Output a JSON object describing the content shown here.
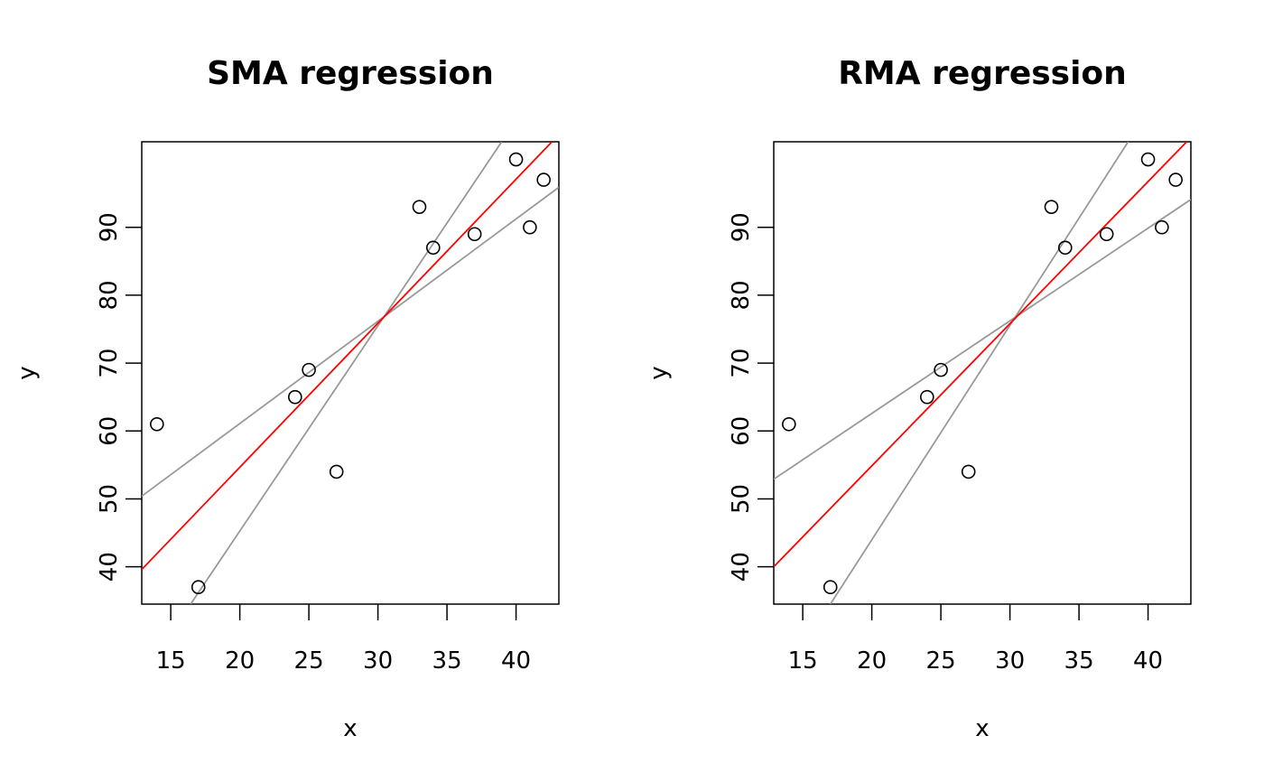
{
  "chart_data": [
    {
      "type": "scatter",
      "title": "SMA regression",
      "x_label": "x",
      "y_label": "y",
      "x": [
        14,
        17,
        24,
        25,
        27,
        33,
        34,
        37,
        40,
        41,
        42
      ],
      "values": [
        61,
        37,
        65,
        69,
        54,
        93,
        87,
        89,
        100,
        90,
        97
      ],
      "color": "#000000",
      "lines": [
        {
          "color": "#999999",
          "x": [
            16.44,
            38.96
          ],
          "values": [
            34.5,
            102.6
          ]
        },
        {
          "color": "#999999",
          "x": [
            12.9,
            43.1
          ],
          "values": [
            50.4,
            95.9
          ]
        },
        {
          "color": "#ff0000",
          "x": [
            12.9,
            42.6
          ],
          "values": [
            39.6,
            102.6
          ]
        }
      ],
      "xlim": [
        12.9,
        43.1
      ],
      "ylim": [
        34.5,
        102.6
      ],
      "xticks": [
        15,
        20,
        25,
        30,
        35,
        40
      ],
      "yticks": [
        40,
        50,
        60,
        70,
        80,
        90
      ]
    },
    {
      "type": "scatter",
      "title": "RMA regression",
      "x_label": "x",
      "y_label": "y",
      "x": [
        14,
        17,
        24,
        25,
        27,
        33,
        34,
        37,
        40,
        41,
        42
      ],
      "values": [
        61,
        37,
        65,
        69,
        54,
        93,
        87,
        89,
        100,
        90,
        97
      ],
      "color": "#000000",
      "lines": [
        {
          "color": "#999999",
          "x": [
            17.0,
            38.56
          ],
          "values": [
            34.5,
            102.6
          ]
        },
        {
          "color": "#999999",
          "x": [
            12.9,
            43.1
          ],
          "values": [
            52.9,
            94.1
          ]
        },
        {
          "color": "#ff0000",
          "x": [
            12.9,
            42.8
          ],
          "values": [
            40,
            102.6
          ]
        }
      ],
      "xlim": [
        12.9,
        43.1
      ],
      "ylim": [
        34.5,
        102.6
      ],
      "xticks": [
        15,
        20,
        25,
        30,
        35,
        40
      ],
      "yticks": [
        40,
        50,
        60,
        70,
        80,
        90
      ]
    }
  ]
}
